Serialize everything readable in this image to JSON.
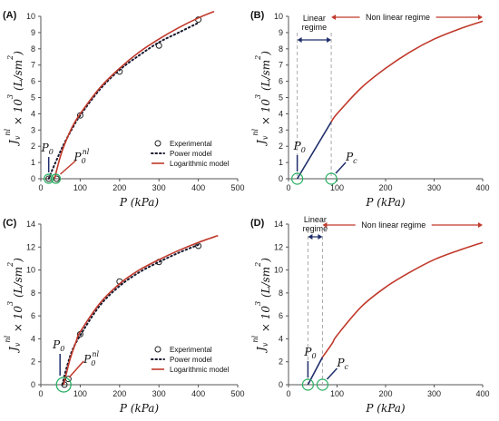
{
  "chart_data": [
    {
      "panel_label": "(A)",
      "type": "line",
      "xlabel": "P (kPa)",
      "ylabel": "J_v^nl × 10^3 (L/sm^2)",
      "xlim": [
        0,
        500
      ],
      "ylim": [
        0,
        10
      ],
      "xticks": [
        0,
        100,
        200,
        300,
        400,
        500
      ],
      "yticks": [
        0,
        1,
        2,
        3,
        4,
        5,
        6,
        7,
        8,
        9,
        10
      ],
      "legend": {
        "position": "bottom-right",
        "entries": [
          "Experimental",
          "Power model",
          "Logarithmic model"
        ]
      },
      "series": [
        {
          "name": "Experimental",
          "style": "open-circle",
          "x": [
            20,
            40,
            100,
            200,
            300,
            400
          ],
          "y": [
            0,
            0,
            3.9,
            6.6,
            8.2,
            9.8
          ]
        },
        {
          "name": "Power model",
          "style": "dotted",
          "color": "#1a1a2e",
          "x": [
            20,
            30,
            40,
            50,
            60,
            80,
            100,
            150,
            200,
            250,
            300,
            350,
            400
          ],
          "y": [
            0,
            0.6,
            1.15,
            1.7,
            2.2,
            3.1,
            3.9,
            5.5,
            6.7,
            7.6,
            8.4,
            9.0,
            9.6
          ]
        },
        {
          "name": "Logarithmic model",
          "style": "solid",
          "color": "#c0392b",
          "x": [
            35,
            40,
            50,
            60,
            80,
            100,
            150,
            200,
            250,
            300,
            350,
            400,
            440
          ],
          "y": [
            0,
            0.5,
            1.4,
            2.1,
            3.2,
            4.0,
            5.6,
            6.8,
            7.8,
            8.6,
            9.3,
            9.9,
            10.3
          ]
        }
      ],
      "annotations": [
        "P0",
        "P0nl"
      ]
    },
    {
      "panel_label": "(B)",
      "type": "line",
      "xlabel": "P (kPa)",
      "ylabel": "J_v^nl × 10^3 (L/sm^2)",
      "xlim": [
        0,
        400
      ],
      "ylim": [
        0,
        10
      ],
      "xticks": [
        0,
        100,
        200,
        300,
        400
      ],
      "yticks": [
        0,
        1,
        2,
        3,
        4,
        5,
        6,
        7,
        8,
        9,
        10
      ],
      "regimes": [
        {
          "label": "Linear regime",
          "x_from": 18,
          "x_to": 88
        },
        {
          "label": "Non linear regime",
          "x_from": 88,
          "x_to": 400
        }
      ],
      "series": [
        {
          "style": "solid",
          "color": "#1f2d6b",
          "x": [
            18,
            88
          ],
          "y": [
            0,
            3.5
          ]
        },
        {
          "style": "solid",
          "color": "#c0392b",
          "x": [
            88,
            100,
            150,
            200,
            250,
            300,
            350,
            400
          ],
          "y": [
            3.5,
            4.0,
            5.6,
            6.8,
            7.8,
            8.6,
            9.2,
            9.7
          ]
        }
      ],
      "annotations": [
        "P0",
        "Pc"
      ]
    },
    {
      "panel_label": "(C)",
      "type": "line",
      "xlabel": "P (kPa)",
      "ylabel": "J_v^nl × 10^3 (L/sm^2)",
      "xlim": [
        0,
        500
      ],
      "ylim": [
        0,
        14
      ],
      "xticks": [
        0,
        100,
        200,
        300,
        400,
        500
      ],
      "yticks": [
        0,
        2,
        4,
        6,
        8,
        10,
        12,
        14
      ],
      "legend": {
        "position": "bottom-right",
        "entries": [
          "Experimental",
          "Power model",
          "Logarithmic model"
        ]
      },
      "series": [
        {
          "name": "Experimental",
          "style": "open-circle",
          "x": [
            60,
            70,
            100,
            200,
            300,
            400
          ],
          "y": [
            0,
            0.5,
            4.4,
            9.0,
            10.7,
            12.1
          ]
        },
        {
          "name": "Power model",
          "style": "dotted",
          "color": "#1a1a2e",
          "x": [
            55,
            60,
            70,
            80,
            100,
            150,
            200,
            250,
            300,
            350,
            400
          ],
          "y": [
            0,
            0.8,
            2.0,
            3.0,
            4.3,
            6.9,
            8.6,
            9.8,
            10.7,
            11.5,
            12.2
          ]
        },
        {
          "name": "Logarithmic model",
          "style": "solid",
          "color": "#c0392b",
          "x": [
            58,
            65,
            75,
            90,
            100,
            150,
            200,
            250,
            300,
            350,
            400,
            450
          ],
          "y": [
            0,
            1.0,
            2.3,
            3.8,
            4.6,
            7.1,
            8.8,
            10.0,
            10.9,
            11.7,
            12.4,
            13.0
          ]
        }
      ],
      "annotations": [
        "P0",
        "P0nl"
      ]
    },
    {
      "panel_label": "(D)",
      "type": "line",
      "xlabel": "P (kPa)",
      "ylabel": "J_v^nl × 10^3 (L/sm^2)",
      "xlim": [
        0,
        400
      ],
      "ylim": [
        0,
        14
      ],
      "xticks": [
        0,
        100,
        200,
        300,
        400
      ],
      "yticks": [
        0,
        2,
        4,
        6,
        8,
        10,
        12,
        14
      ],
      "regimes": [
        {
          "label": "Linear regime",
          "x_from": 40,
          "x_to": 70
        },
        {
          "label": "Non linear regime",
          "x_from": 70,
          "x_to": 400
        }
      ],
      "series": [
        {
          "style": "solid",
          "color": "#1f2d6b",
          "x": [
            40,
            70
          ],
          "y": [
            0,
            2.4
          ]
        },
        {
          "style": "solid",
          "color": "#c0392b",
          "x": [
            70,
            90,
            100,
            150,
            200,
            250,
            300,
            350,
            400
          ],
          "y": [
            2.4,
            3.6,
            4.3,
            6.8,
            8.5,
            9.8,
            10.9,
            11.7,
            12.4
          ]
        }
      ],
      "annotations": [
        "P0",
        "Pc"
      ]
    }
  ]
}
